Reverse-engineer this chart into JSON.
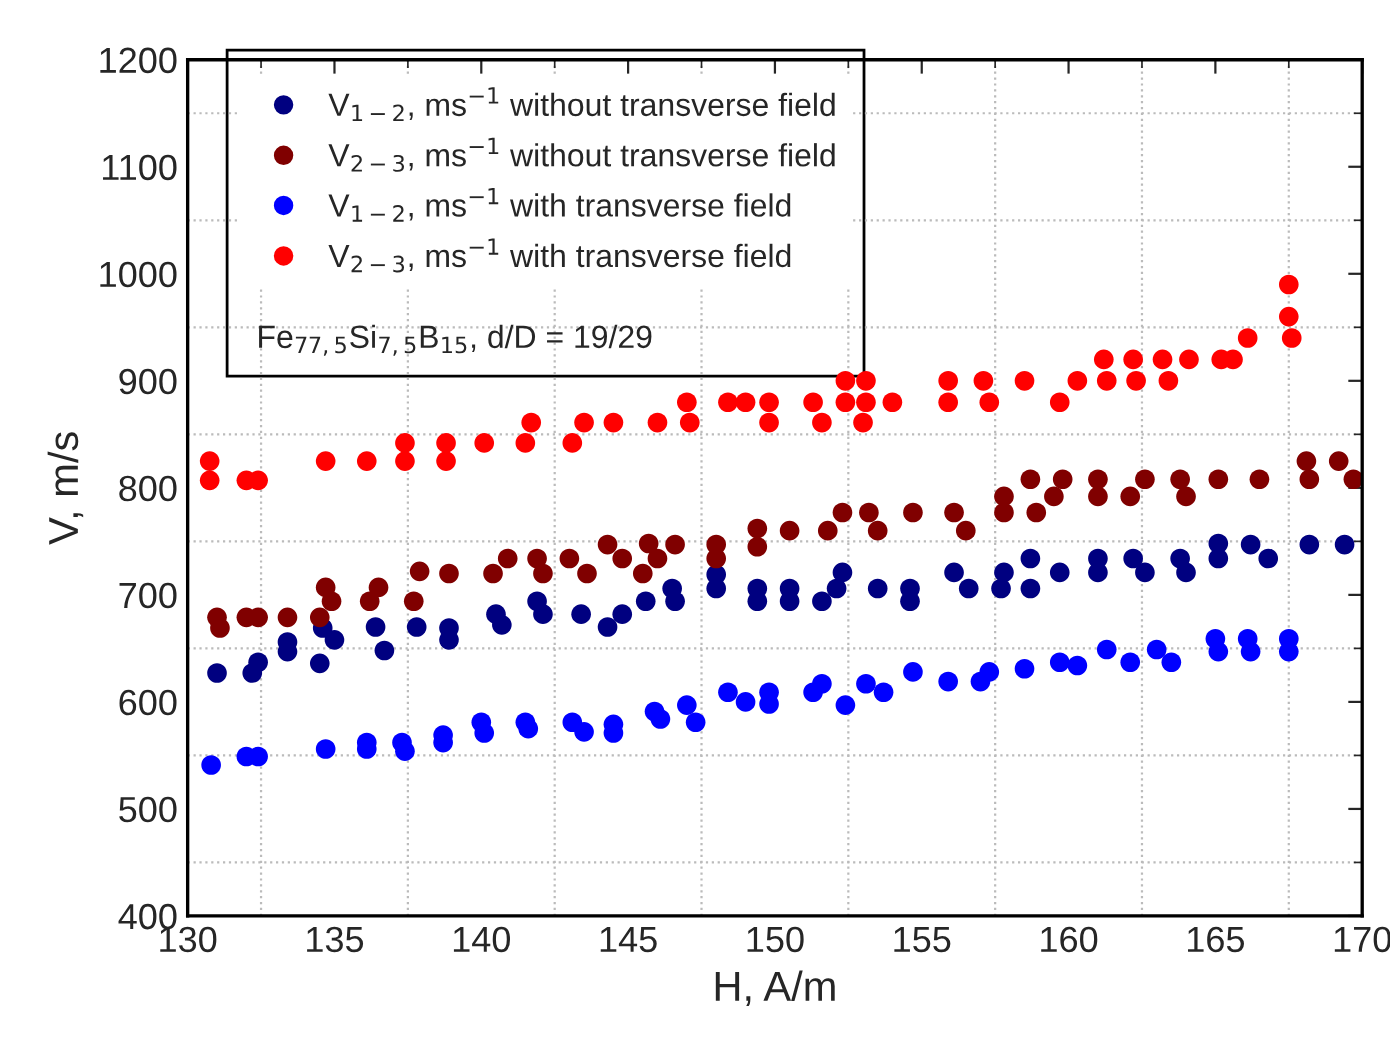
{
  "chart_data": {
    "type": "scatter",
    "xlabel": "H, A/m",
    "ylabel": "V, m/s",
    "xlim": [
      130,
      170
    ],
    "ylim": [
      400,
      1200
    ],
    "xticks": [
      130,
      135,
      140,
      145,
      150,
      155,
      160,
      165,
      170
    ],
    "yticks": [
      400,
      500,
      600,
      700,
      800,
      900,
      1000,
      1100,
      1200
    ],
    "grid": true,
    "legend": "top left",
    "marker": "circle",
    "annotations": [
      "Fe$_{77,5}$Si$_{7,5}$B$_{15}$, d/D = 19/29"
    ],
    "series": [
      {
        "name": "V$_{1−2}$, ms$^{−1}$ without transverse field",
        "color": "#000080",
        "x": [
          131,
          132.2,
          132.4,
          133.4,
          133.4,
          134.5,
          134.6,
          135,
          136.4,
          136.7,
          137.8,
          138.9,
          138.9,
          140.5,
          140.7,
          141.9,
          142.1,
          143.4,
          144.3,
          144.8,
          145.6,
          146.5,
          146.6,
          148,
          148,
          149.4,
          149.4,
          150.5,
          150.5,
          151.6,
          152.3,
          152.1,
          153.5,
          154.6,
          154.6,
          156.1,
          156.6,
          157.8,
          157.7,
          158.7,
          158.7,
          159.7,
          161,
          161,
          162.2,
          162.6,
          163.8,
          164,
          165.1,
          165.1,
          166.2,
          166.8,
          168.2,
          169.4
        ],
        "values": [
          627,
          627,
          637,
          656,
          647,
          636,
          669,
          658,
          670,
          648,
          670,
          669,
          658,
          682,
          672,
          694,
          682,
          682,
          670,
          682,
          694,
          706,
          694,
          719,
          706,
          706,
          694,
          706,
          694,
          694,
          721,
          706,
          706,
          706,
          694,
          721,
          706,
          721,
          706,
          734,
          706,
          721,
          734,
          721,
          734,
          721,
          734,
          721,
          748,
          734,
          747,
          734,
          747,
          747
        ]
      },
      {
        "name": "V$_{2−3}$, ms$^{−1}$ without transverse field",
        "color": "#800000",
        "x": [
          131,
          131.1,
          132,
          132.4,
          133.4,
          134.5,
          134.7,
          134.9,
          136.2,
          136.5,
          137.7,
          137.9,
          138.9,
          140.4,
          140.9,
          141.9,
          142.1,
          143,
          143.6,
          144.3,
          144.8,
          145.5,
          145.7,
          146,
          146.6,
          148,
          148,
          149.4,
          149.4,
          150.5,
          151.8,
          152.3,
          153.2,
          153.5,
          154.7,
          156.1,
          156.5,
          157.8,
          157.8,
          158.7,
          158.9,
          159.5,
          159.8,
          161,
          161,
          162.1,
          162.6,
          163.8,
          164,
          165.1,
          166.5,
          168.1,
          168.2,
          169.2,
          169.7
        ],
        "values": [
          679,
          669,
          679,
          679,
          679,
          679,
          707,
          694,
          694,
          707,
          694,
          722,
          720,
          720,
          734,
          734,
          720,
          734,
          720,
          747,
          734,
          720,
          748,
          734,
          747,
          747,
          734,
          762,
          745,
          760,
          760,
          777,
          777,
          760,
          777,
          777,
          760,
          792,
          777,
          808,
          777,
          792,
          808,
          808,
          792,
          792,
          808,
          808,
          792,
          808,
          808,
          825,
          808,
          825,
          808
        ]
      },
      {
        "name": "V$_{1−2}$, ms$^{−1}$ with transverse field",
        "color": "#0000ff",
        "x": [
          130.8,
          132,
          132.4,
          134.7,
          136.1,
          136.1,
          137.3,
          137.4,
          138.7,
          138.7,
          140,
          140.1,
          141.5,
          141.6,
          143.1,
          143.5,
          144.5,
          144.5,
          145.9,
          146.1,
          147,
          147.3,
          148.4,
          149,
          149.8,
          149.8,
          151.3,
          151.6,
          152.4,
          153.1,
          153.7,
          154.7,
          155.9,
          157,
          157.3,
          158.5,
          159.7,
          160.3,
          161.3,
          162.1,
          163,
          163.5,
          165,
          165.1,
          166.1,
          166.2,
          167.5,
          167.5
        ],
        "values": [
          541,
          549,
          549,
          556,
          562,
          556,
          562,
          554,
          569,
          562,
          581,
          571,
          581,
          575,
          581,
          572,
          579,
          571,
          591,
          584,
          597,
          581,
          609,
          600,
          609,
          598,
          609,
          617,
          597,
          617,
          609,
          628,
          619,
          619,
          628,
          631,
          637,
          634,
          649,
          637,
          649,
          637,
          659,
          647,
          659,
          647,
          659,
          647
        ]
      },
      {
        "name": "V$_{2−3}$, ms$^{−1}$ with transverse field",
        "color": "#ff0000",
        "x": [
          130.75,
          130.75,
          132,
          132.4,
          134.7,
          136.1,
          137.4,
          137.4,
          138.8,
          138.8,
          140.1,
          141.5,
          141.7,
          143.1,
          143.5,
          144.5,
          146,
          147.1,
          147,
          148.4,
          149,
          149.8,
          149.8,
          151.3,
          151.6,
          152.4,
          152.4,
          153,
          153.1,
          153.1,
          154,
          155.9,
          155.9,
          157.1,
          157.3,
          158.5,
          159.7,
          160.3,
          161.3,
          162.3,
          163.4,
          161.2,
          162.2,
          163.2,
          164.1,
          165.2,
          165.6,
          166.1,
          167.5,
          167.5,
          167.6
        ],
        "values": [
          825,
          807,
          807,
          807,
          825,
          825,
          842,
          825,
          842,
          825,
          842,
          842,
          861,
          842,
          861,
          861,
          861,
          861,
          880,
          880,
          880,
          880,
          861,
          880,
          861,
          900,
          880,
          861,
          900,
          880,
          880,
          900,
          880,
          900,
          880,
          900,
          880,
          900,
          900,
          900,
          900,
          920,
          920,
          920,
          920,
          920,
          920,
          940,
          990,
          960,
          940
        ]
      }
    ]
  }
}
